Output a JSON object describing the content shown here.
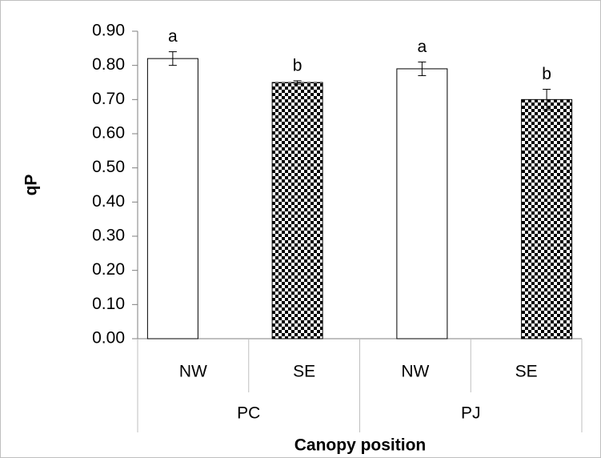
{
  "chart_data": {
    "type": "bar",
    "categories": [
      "NW",
      "SE",
      "NW",
      "SE"
    ],
    "groups": [
      "PC",
      "PJ"
    ],
    "values": [
      0.82,
      0.75,
      0.79,
      0.7
    ],
    "errors": [
      0.02,
      0.005,
      0.02,
      0.03
    ],
    "annotations": [
      "a",
      "b",
      "a",
      "b"
    ],
    "bar_styles": [
      "plain",
      "checkered",
      "plain",
      "checkered"
    ],
    "ylabel": "qP",
    "xlabel": "Canopy position",
    "ylim": [
      0,
      0.9
    ],
    "yticks": [
      {
        "value": 0,
        "label": "0.00"
      },
      {
        "value": 0.1,
        "label": "0.10"
      },
      {
        "value": 0.2,
        "label": "0.20"
      },
      {
        "value": 0.3,
        "label": "0.30"
      },
      {
        "value": 0.4,
        "label": "0.40"
      },
      {
        "value": 0.5,
        "label": "0.50"
      },
      {
        "value": 0.6,
        "label": "0.60"
      },
      {
        "value": 0.7,
        "label": "0.70"
      },
      {
        "value": 0.8,
        "label": "0.80"
      },
      {
        "value": 0.9,
        "label": "0.90"
      }
    ]
  }
}
